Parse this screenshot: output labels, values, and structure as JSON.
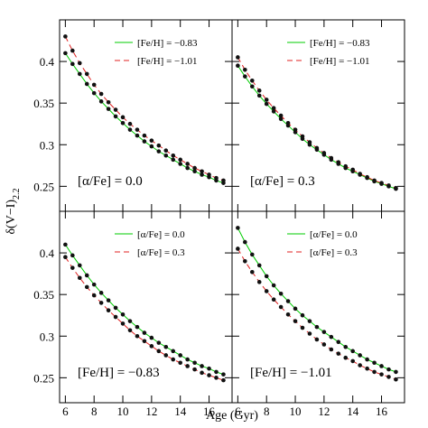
{
  "figure": {
    "xlabel": "Age (Gyr)",
    "ylabel": "δ(V−I)",
    "ylabel_subscript": "2.2"
  },
  "chart_data": [
    {
      "type": "line",
      "annotation": "[α/Fe] = 0.0",
      "x": [
        6,
        6.5,
        7,
        7.5,
        8,
        8.5,
        9,
        9.5,
        10,
        10.5,
        11,
        11.5,
        12,
        12.5,
        13,
        13.5,
        14,
        14.5,
        15,
        15.5,
        16,
        16.5,
        17
      ],
      "series": [
        {
          "name": "[Fe/H] = −0.83",
          "color": "#00cc00",
          "linestyle": "solid",
          "values": [
            0.41,
            0.397,
            0.385,
            0.373,
            0.362,
            0.352,
            0.343,
            0.334,
            0.326,
            0.318,
            0.311,
            0.304,
            0.298,
            0.292,
            0.287,
            0.282,
            0.277,
            0.272,
            0.268,
            0.264,
            0.261,
            0.257,
            0.254
          ]
        },
        {
          "name": "[Fe/H] = −1.01",
          "color": "#e02020",
          "linestyle": "dashed",
          "values": [
            0.43,
            0.413,
            0.398,
            0.385,
            0.372,
            0.361,
            0.351,
            0.342,
            0.333,
            0.325,
            0.318,
            0.311,
            0.305,
            0.299,
            0.293,
            0.287,
            0.282,
            0.277,
            0.272,
            0.268,
            0.264,
            0.26,
            0.257
          ]
        }
      ],
      "xlim": [
        5.6,
        17.6
      ],
      "ylim": [
        0.22,
        0.45
      ],
      "xticks": [
        6,
        8,
        10,
        12,
        14,
        16
      ],
      "yticks": [
        0.25,
        0.3,
        0.35,
        0.4
      ]
    },
    {
      "type": "line",
      "annotation": "[α/Fe] = 0.3",
      "x": [
        6,
        6.5,
        7,
        7.5,
        8,
        8.5,
        9,
        9.5,
        10,
        10.5,
        11,
        11.5,
        12,
        12.5,
        13,
        13.5,
        14,
        14.5,
        15,
        15.5,
        16,
        16.5,
        17
      ],
      "series": [
        {
          "name": "[Fe/H] = −0.83",
          "color": "#00cc00",
          "linestyle": "solid",
          "values": [
            0.395,
            0.382,
            0.37,
            0.359,
            0.349,
            0.34,
            0.331,
            0.323,
            0.315,
            0.307,
            0.3,
            0.294,
            0.288,
            0.282,
            0.277,
            0.272,
            0.268,
            0.264,
            0.26,
            0.256,
            0.253,
            0.25,
            0.247
          ]
        },
        {
          "name": "[Fe/H] = −1.01",
          "color": "#e02020",
          "linestyle": "dashed",
          "values": [
            0.405,
            0.39,
            0.377,
            0.365,
            0.354,
            0.344,
            0.335,
            0.326,
            0.318,
            0.31,
            0.303,
            0.296,
            0.29,
            0.284,
            0.279,
            0.274,
            0.27,
            0.265,
            0.261,
            0.257,
            0.254,
            0.251,
            0.248
          ]
        }
      ],
      "xlim": [
        5.6,
        17.6
      ],
      "ylim": [
        0.22,
        0.45
      ],
      "xticks": [
        6,
        8,
        10,
        12,
        14,
        16
      ],
      "yticks": [
        0.25,
        0.3,
        0.35,
        0.4
      ]
    },
    {
      "type": "line",
      "annotation": "[Fe/H] = −0.83",
      "x": [
        6,
        6.5,
        7,
        7.5,
        8,
        8.5,
        9,
        9.5,
        10,
        10.5,
        11,
        11.5,
        12,
        12.5,
        13,
        13.5,
        14,
        14.5,
        15,
        15.5,
        16,
        16.5,
        17
      ],
      "series": [
        {
          "name": "[α/Fe] = 0.0",
          "color": "#00cc00",
          "linestyle": "solid",
          "values": [
            0.41,
            0.397,
            0.385,
            0.373,
            0.362,
            0.352,
            0.343,
            0.334,
            0.326,
            0.318,
            0.311,
            0.304,
            0.298,
            0.292,
            0.287,
            0.282,
            0.277,
            0.272,
            0.268,
            0.264,
            0.261,
            0.257,
            0.254
          ]
        },
        {
          "name": "[α/Fe] = 0.3",
          "color": "#e02020",
          "linestyle": "dashed",
          "values": [
            0.395,
            0.382,
            0.37,
            0.359,
            0.349,
            0.34,
            0.331,
            0.323,
            0.315,
            0.307,
            0.3,
            0.294,
            0.288,
            0.282,
            0.277,
            0.272,
            0.268,
            0.264,
            0.26,
            0.256,
            0.253,
            0.25,
            0.247
          ]
        }
      ],
      "xlim": [
        5.6,
        17.6
      ],
      "ylim": [
        0.22,
        0.45
      ],
      "xticks": [
        6,
        8,
        10,
        12,
        14,
        16
      ],
      "yticks": [
        0.25,
        0.3,
        0.35,
        0.4
      ]
    },
    {
      "type": "line",
      "annotation": "[Fe/H] = −1.01",
      "x": [
        6,
        6.5,
        7,
        7.5,
        8,
        8.5,
        9,
        9.5,
        10,
        10.5,
        11,
        11.5,
        12,
        12.5,
        13,
        13.5,
        14,
        14.5,
        15,
        15.5,
        16,
        16.5,
        17
      ],
      "series": [
        {
          "name": "[α/Fe] = 0.0",
          "color": "#00cc00",
          "linestyle": "solid",
          "values": [
            0.43,
            0.413,
            0.398,
            0.385,
            0.372,
            0.361,
            0.351,
            0.342,
            0.333,
            0.325,
            0.318,
            0.311,
            0.305,
            0.299,
            0.293,
            0.287,
            0.282,
            0.277,
            0.272,
            0.268,
            0.264,
            0.26,
            0.257
          ]
        },
        {
          "name": "[α/Fe] = 0.3",
          "color": "#e02020",
          "linestyle": "dashed",
          "values": [
            0.405,
            0.39,
            0.377,
            0.365,
            0.354,
            0.344,
            0.335,
            0.326,
            0.318,
            0.31,
            0.303,
            0.296,
            0.29,
            0.284,
            0.279,
            0.274,
            0.27,
            0.265,
            0.261,
            0.257,
            0.254,
            0.251,
            0.248
          ]
        }
      ],
      "xlim": [
        5.6,
        17.6
      ],
      "ylim": [
        0.22,
        0.45
      ],
      "xticks": [
        6,
        8,
        10,
        12,
        14,
        16
      ],
      "yticks": [
        0.25,
        0.3,
        0.35,
        0.4
      ]
    }
  ]
}
